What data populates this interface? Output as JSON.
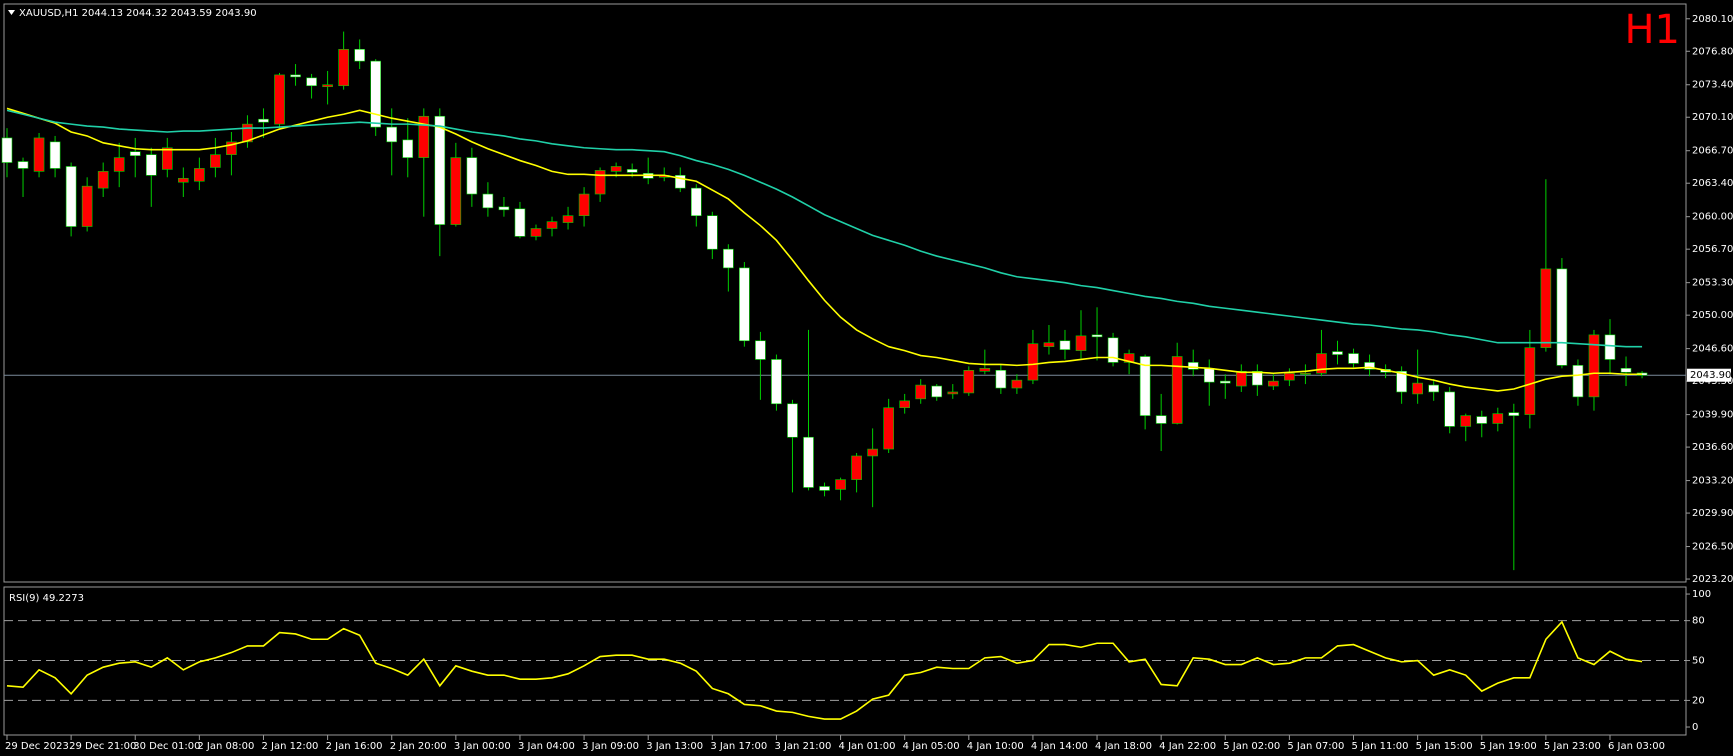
{
  "chart_data": [
    {
      "type": "candlestick",
      "title": "XAUUSD,H1  2044.13 2044.32 2043.59 2043.90",
      "badge": "H1",
      "categories": [
        "29 Dec 2023",
        null,
        null,
        null,
        "29 Dec 21:00",
        null,
        null,
        null,
        "30 Dec 01:00",
        null,
        null,
        null,
        "2 Jan 08:00",
        null,
        null,
        null,
        "2 Jan 12:00",
        null,
        null,
        null,
        "2 Jan 16:00",
        null,
        null,
        null,
        "2 Jan 20:00",
        null,
        null,
        null,
        "3 Jan 00:00",
        null,
        null,
        null,
        "3 Jan 04:00",
        null,
        null,
        null,
        "3 Jan 09:00",
        null,
        null,
        null,
        "3 Jan 13:00",
        null,
        null,
        null,
        "3 Jan 17:00",
        null,
        null,
        null,
        "3 Jan 21:00",
        null,
        null,
        null,
        "4 Jan 01:00",
        null,
        null,
        null,
        "4 Jan 05:00",
        null,
        null,
        null,
        "4 Jan 10:00",
        null,
        null,
        null,
        "4 Jan 14:00",
        null,
        null,
        null,
        "4 Jan 18:00",
        null,
        null,
        null,
        "4 Jan 22:00",
        null,
        null,
        null,
        "5 Jan 02:00",
        null,
        null,
        null,
        "5 Jan 07:00",
        null,
        null,
        null,
        "5 Jan 11:00",
        null,
        null,
        null,
        "5 Jan 15:00",
        null,
        null,
        null,
        "5 Jan 19:00",
        null,
        null,
        null,
        "5 Jan 23:00",
        null,
        null,
        null,
        "6 Jan 03:00",
        null,
        null
      ],
      "open": [
        2068.0,
        2065.6,
        2064.6,
        2067.6,
        2065.1,
        2059.0,
        2062.9,
        2064.6,
        2066.6,
        2066.3,
        2064.8,
        2063.5,
        2063.6,
        2065.0,
        2066.3,
        2067.6,
        2069.9,
        2069.4,
        2074.4,
        2074.1,
        2073.2,
        2073.3,
        2077.0,
        2075.8,
        2069.1,
        2067.8,
        2066.0,
        2070.2,
        2059.2,
        2066.0,
        2062.3,
        2061.0,
        2060.8,
        2058.0,
        2058.8,
        2059.4,
        2060.1,
        2062.3,
        2064.6,
        2064.8,
        2064.4,
        2064.0,
        2064.2,
        2062.9,
        2060.1,
        2056.7,
        2054.8,
        2047.4,
        2045.5,
        2041.0,
        2037.6,
        2032.6,
        2032.3,
        2033.3,
        2035.7,
        2036.4,
        2040.6,
        2041.5,
        2042.8,
        2042.0,
        2042.1,
        2044.3,
        2044.4,
        2042.6,
        2043.4,
        2046.8,
        2047.4,
        2046.4,
        2048.0,
        2047.7,
        2045.2,
        2045.8,
        2039.8,
        2039.0,
        2045.2,
        2044.6,
        2043.3,
        2042.8,
        2044.3,
        2042.8,
        2043.4,
        2044.0,
        2044.1,
        2046.3,
        2046.1,
        2045.2,
        2044.5,
        2044.3,
        2042.0,
        2042.9,
        2042.2,
        2038.7,
        2039.7,
        2039.0,
        2040.1,
        2039.9,
        2046.7,
        2054.7,
        2044.9,
        2041.7,
        2048.0,
        2044.6,
        2044.13
      ],
      "high": [
        2069,
        2066,
        2068.5,
        2068.2,
        2065.5,
        2064,
        2065.5,
        2067.5,
        2068,
        2067,
        2068,
        2065,
        2066,
        2068,
        2068.6,
        2070.3,
        2071,
        2074.6,
        2075.5,
        2074.5,
        2074.8,
        2078.8,
        2078,
        2076,
        2071,
        2070,
        2071,
        2071,
        2067.5,
        2067,
        2063.5,
        2062,
        2061.5,
        2059.2,
        2060,
        2061,
        2063,
        2065,
        2065.5,
        2065.4,
        2066,
        2065,
        2065,
        2063.3,
        2060.5,
        2057.2,
        2055.4,
        2048.3,
        2046,
        2041.4,
        2048.5,
        2033,
        2033.5,
        2036,
        2038.5,
        2041.5,
        2042,
        2043.5,
        2043,
        2043,
        2044.8,
        2046.5,
        2045,
        2044,
        2048.5,
        2049,
        2048.5,
        2050.5,
        2050.8,
        2048.2,
        2046.5,
        2046,
        2042,
        2047.2,
        2046.5,
        2045.5,
        2044,
        2045,
        2045,
        2044,
        2044.6,
        2045,
        2048.5,
        2047.4,
        2046.6,
        2046,
        2045,
        2044.8,
        2046.5,
        2043.5,
        2042.7,
        2040,
        2040.3,
        2040.6,
        2041,
        2048.5,
        2063.8,
        2055.8,
        2045.5,
        2048.5,
        2049.6,
        2045.8,
        2044.32
      ],
      "low": [
        2064,
        2062,
        2064,
        2064,
        2058,
        2058.5,
        2062,
        2063,
        2064,
        2061,
        2064,
        2062,
        2062.7,
        2064,
        2064.2,
        2067,
        2068,
        2069,
        2073.3,
        2072,
        2071.4,
        2072.9,
        2075,
        2068.2,
        2064.2,
        2064,
        2060,
        2056,
        2059,
        2061,
        2060,
        2060,
        2057.8,
        2057.6,
        2058,
        2058.7,
        2059,
        2061.5,
        2064,
        2064,
        2063.3,
        2063.6,
        2062.5,
        2059,
        2055.7,
        2052.4,
        2046.8,
        2041.4,
        2040.3,
        2032,
        2032.2,
        2031.6,
        2031.2,
        2032,
        2030.5,
        2036,
        2040,
        2041,
        2041.3,
        2041.5,
        2041.8,
        2044,
        2042,
        2042,
        2043,
        2046,
        2045.5,
        2045.6,
        2045.4,
        2044.8,
        2044,
        2038.4,
        2036.2,
        2038.9,
        2043.8,
        2040.8,
        2041.5,
        2042.2,
        2041.8,
        2042.4,
        2042.8,
        2043,
        2043.8,
        2045,
        2044.7,
        2043.8,
        2043.6,
        2041,
        2041,
        2041.3,
        2038,
        2037.2,
        2037.6,
        2038.2,
        2024.1,
        2038.5,
        2046.3,
        2044.6,
        2040.8,
        2040.3,
        2044,
        2042.8,
        2043.59
      ],
      "close": [
        2065.5,
        2064.9,
        2068.0,
        2064.9,
        2059.0,
        2063.1,
        2064.6,
        2066.0,
        2066.2,
        2064.2,
        2067.0,
        2063.9,
        2064.9,
        2066.3,
        2067.6,
        2069.4,
        2069.6,
        2074.4,
        2074.2,
        2073.3,
        2073.4,
        2077.0,
        2075.8,
        2069.1,
        2067.6,
        2066.0,
        2070.2,
        2059.2,
        2066.0,
        2062.3,
        2060.9,
        2060.7,
        2058.0,
        2058.8,
        2059.5,
        2060.1,
        2062.3,
        2064.7,
        2065.1,
        2064.5,
        2063.9,
        2064.2,
        2062.9,
        2060.1,
        2056.7,
        2054.8,
        2047.4,
        2045.5,
        2041.0,
        2037.6,
        2032.5,
        2032.2,
        2033.3,
        2035.7,
        2036.4,
        2040.6,
        2041.3,
        2042.9,
        2041.7,
        2042.2,
        2044.4,
        2044.6,
        2042.6,
        2043.4,
        2047.1,
        2047.2,
        2046.5,
        2047.9,
        2047.8,
        2045.2,
        2046.1,
        2039.8,
        2039.0,
        2045.8,
        2044.5,
        2043.2,
        2043.1,
        2044.3,
        2042.9,
        2043.3,
        2044.1,
        2044.1,
        2046.1,
        2046.0,
        2045.1,
        2044.5,
        2044.2,
        2042.2,
        2043.1,
        2042.2,
        2038.7,
        2039.8,
        2039.0,
        2040.0,
        2039.8,
        2046.7,
        2054.7,
        2044.9,
        2041.7,
        2048.0,
        2045.5,
        2044.2,
        2043.9
      ],
      "bull_color": "#ff0000",
      "bear_color": "#ffffff",
      "wick_color": "#00d000",
      "lines": [
        {
          "color": "#ffff00",
          "values": [
            2071.0,
            2070.5,
            2070.0,
            2069.5,
            2068.6,
            2068.2,
            2067.5,
            2067.2,
            2066.9,
            2066.8,
            2066.8,
            2066.8,
            2066.8,
            2067.0,
            2067.3,
            2067.7,
            2068.3,
            2068.9,
            2069.3,
            2069.7,
            2070.1,
            2070.4,
            2070.8,
            2070.4,
            2070.0,
            2069.7,
            2069.4,
            2069.1,
            2068.4,
            2067.6,
            2066.9,
            2066.3,
            2065.7,
            2065.2,
            2064.6,
            2064.3,
            2064.3,
            2064.2,
            2064.2,
            2064.2,
            2064.2,
            2064.2,
            2063.9,
            2063.6,
            2062.7,
            2061.8,
            2060.4,
            2059.1,
            2057.6,
            2055.6,
            2053.5,
            2051.5,
            2049.8,
            2048.5,
            2047.6,
            2046.8,
            2046.4,
            2045.9,
            2045.7,
            2045.4,
            2045.1,
            2045.0,
            2045.0,
            2044.9,
            2045.0,
            2045.2,
            2045.3,
            2045.5,
            2045.7,
            2045.7,
            2045.3,
            2044.9,
            2044.9,
            2044.8,
            2044.7,
            2044.6,
            2044.4,
            2044.2,
            2044.2,
            2044.1,
            2044.2,
            2044.3,
            2044.5,
            2044.6,
            2044.6,
            2044.7,
            2044.4,
            2044.1,
            2043.7,
            2043.4,
            2043.0,
            2042.7,
            2042.5,
            2042.3,
            2042.5,
            2043.0,
            2043.5,
            2043.8,
            2043.9,
            2044.1,
            2044.1,
            2044.0,
            2044.0
          ]
        },
        {
          "color": "#20d0a8",
          "values": [
            2070.8,
            2070.4,
            2070.0,
            2069.6,
            2069.4,
            2069.2,
            2069.1,
            2068.9,
            2068.8,
            2068.7,
            2068.6,
            2068.7,
            2068.7,
            2068.8,
            2068.9,
            2069.0,
            2069.0,
            2069.1,
            2069.2,
            2069.3,
            2069.4,
            2069.5,
            2069.6,
            2069.5,
            2069.4,
            2069.4,
            2069.3,
            2069.2,
            2068.9,
            2068.6,
            2068.4,
            2068.2,
            2067.9,
            2067.7,
            2067.4,
            2067.2,
            2067.0,
            2066.9,
            2066.8,
            2066.8,
            2066.7,
            2066.6,
            2066.2,
            2065.7,
            2065.3,
            2064.8,
            2064.2,
            2063.5,
            2062.8,
            2062.0,
            2061.1,
            2060.2,
            2059.5,
            2058.8,
            2058.1,
            2057.6,
            2057.1,
            2056.5,
            2056.0,
            2055.6,
            2055.2,
            2054.8,
            2054.3,
            2053.9,
            2053.7,
            2053.5,
            2053.3,
            2053.0,
            2052.8,
            2052.5,
            2052.2,
            2051.9,
            2051.7,
            2051.4,
            2051.2,
            2050.9,
            2050.7,
            2050.5,
            2050.3,
            2050.1,
            2049.9,
            2049.7,
            2049.5,
            2049.3,
            2049.1,
            2049.0,
            2048.8,
            2048.6,
            2048.5,
            2048.3,
            2048.0,
            2047.8,
            2047.5,
            2047.2,
            2047.2,
            2047.2,
            2047.2,
            2047.2,
            2047.1,
            2047.0,
            2046.9,
            2046.8,
            2046.8
          ]
        }
      ],
      "ylim": [
        2022.9,
        2081.6
      ],
      "yticks": [
        {
          "value": 2080.1,
          "label": "2080.10"
        },
        {
          "value": 2076.8,
          "label": "2076.80"
        },
        {
          "value": 2073.4,
          "label": "2073.40"
        },
        {
          "value": 2070.1,
          "label": "2070.10"
        },
        {
          "value": 2066.7,
          "label": "2066.70"
        },
        {
          "value": 2063.4,
          "label": "2063.40"
        },
        {
          "value": 2060,
          "label": "2060.00"
        },
        {
          "value": 2056.7,
          "label": "2056.70"
        },
        {
          "value": 2053.3,
          "label": "2053.30"
        },
        {
          "value": 2050,
          "label": "2050.00"
        },
        {
          "value": 2046.6,
          "label": "2046.60"
        },
        {
          "value": 2043.3,
          "label": "2043.30"
        },
        {
          "value": 2039.9,
          "label": "2039.90"
        },
        {
          "value": 2036.6,
          "label": "2036.60"
        },
        {
          "value": 2033.2,
          "label": "2033.20"
        },
        {
          "value": 2029.9,
          "label": "2029.90"
        },
        {
          "value": 2026.5,
          "label": "2026.50"
        },
        {
          "value": 2023.2,
          "label": "2023.20"
        }
      ],
      "current_price": {
        "value": 2043.9,
        "label": "2043.90"
      },
      "price_line_color": "#7a8a9a"
    },
    {
      "type": "line",
      "title": "RSI(9) 49.2273",
      "color": "#ffff00",
      "values": [
        31,
        30,
        43,
        37,
        25,
        39,
        45,
        48,
        49,
        45,
        52,
        43,
        49,
        52,
        56,
        61,
        61,
        71,
        70,
        66,
        66,
        74,
        69,
        48,
        44,
        39,
        51,
        31,
        46,
        42,
        39,
        39,
        36,
        36,
        37,
        40,
        46,
        53,
        54,
        54,
        51,
        51,
        48,
        42,
        29,
        25,
        17,
        16,
        12,
        11,
        8,
        6,
        6,
        12,
        21,
        24,
        39,
        41,
        45,
        44,
        44,
        52,
        53,
        48,
        50,
        62,
        62,
        60,
        63,
        63,
        49,
        51,
        32,
        31,
        52,
        51,
        47,
        47,
        52,
        47,
        48,
        52,
        52,
        61,
        62,
        57,
        52,
        49,
        50,
        39,
        43,
        39,
        27,
        33,
        37,
        37,
        66,
        79,
        52,
        47,
        57,
        51,
        49.2
      ],
      "ylim": [
        -6,
        105.3
      ],
      "yticks": [
        0,
        20,
        50,
        80,
        100
      ],
      "levels": [
        20,
        50,
        80
      ]
    }
  ]
}
